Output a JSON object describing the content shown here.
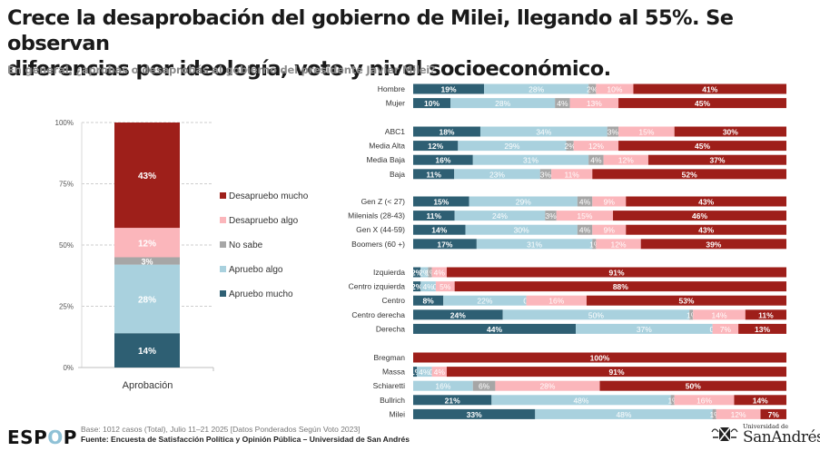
{
  "header": {
    "title_line1": "Crece la desaprobación del gobierno de Milei, llegando al 55%. Se observan",
    "title_line2": "diferencias por ideología, voto y nivel socioeconómico.",
    "subtitle": "En general, ¿aprobás o desaprobás al gobierno del presidente Javier Milei?"
  },
  "colors": {
    "apruebo_mucho": "#2e5f73",
    "apruebo_algo": "#a9d1de",
    "no_sabe": "#a6a6a6",
    "desapruebo_algo": "#fbb6bb",
    "desapruebo_mucho": "#9e1f1a"
  },
  "chart_data": [
    {
      "type": "bar",
      "stacked": true,
      "orientation": "vertical",
      "categories": [
        "Aprobación"
      ],
      "ylim": [
        0,
        100
      ],
      "yticks": [
        "0%",
        "25%",
        "50%",
        "75%",
        "100%"
      ],
      "grid": true,
      "legend_position": "right",
      "series": [
        {
          "name": "Apruebo mucho",
          "key": "apruebo_mucho",
          "values": [
            14
          ],
          "label": "14%"
        },
        {
          "name": "Apruebo algo",
          "key": "apruebo_algo",
          "values": [
            28
          ],
          "label": "28%"
        },
        {
          "name": "No sabe",
          "key": "no_sabe",
          "values": [
            3
          ],
          "label": "3%"
        },
        {
          "name": "Desapruebo algo",
          "key": "desapruebo_algo",
          "values": [
            12
          ],
          "label": "12%"
        },
        {
          "name": "Desapruebo mucho",
          "key": "desapruebo_mucho",
          "values": [
            43
          ],
          "label": "43%"
        }
      ],
      "legend": [
        "Desapruebo mucho",
        "Desapruebo algo",
        "No sabe",
        "Apruebo algo",
        "Apruebo mucho"
      ]
    },
    {
      "type": "bar",
      "stacked": true,
      "orientation": "horizontal",
      "series_names": [
        "Apruebo mucho",
        "Apruebo algo",
        "No sabe",
        "Desapruebo algo",
        "Desapruebo mucho"
      ],
      "series_keys": [
        "apruebo_mucho",
        "apruebo_algo",
        "no_sabe",
        "desapruebo_algo",
        "desapruebo_mucho"
      ],
      "groups": [
        {
          "rows": [
            {
              "label": "Hombre",
              "values": [
                19,
                28,
                2,
                10,
                41
              ]
            },
            {
              "label": "Mujer",
              "values": [
                10,
                28,
                4,
                13,
                45
              ]
            }
          ]
        },
        {
          "rows": [
            {
              "label": "ABC1",
              "values": [
                18,
                34,
                3,
                15,
                30
              ]
            },
            {
              "label": "Media Alta",
              "values": [
                12,
                29,
                2,
                12,
                45
              ]
            },
            {
              "label": "Media Baja",
              "values": [
                16,
                31,
                4,
                12,
                37
              ]
            },
            {
              "label": "Baja",
              "values": [
                11,
                23,
                3,
                11,
                52
              ]
            }
          ]
        },
        {
          "rows": [
            {
              "label": "Gen Z (< 27)",
              "values": [
                15,
                29,
                4,
                9,
                43
              ]
            },
            {
              "label": "Milenials (28-43)",
              "values": [
                11,
                24,
                3,
                15,
                46
              ]
            },
            {
              "label": "Gen X (44-59)",
              "values": [
                14,
                30,
                4,
                9,
                43
              ]
            },
            {
              "label": "Boomers (60 +)",
              "values": [
                17,
                31,
                1,
                12,
                39
              ]
            }
          ]
        },
        {
          "rows": [
            {
              "label": "Izquierda",
              "values": [
                2,
                2,
                1,
                4,
                91
              ]
            },
            {
              "label": "Centro izquierda",
              "values": [
                2,
                4,
                0,
                5,
                88
              ]
            },
            {
              "label": "Centro",
              "values": [
                8,
                22,
                0,
                16,
                53
              ]
            },
            {
              "label": "Centro derecha",
              "values": [
                24,
                50,
                1,
                14,
                11
              ]
            },
            {
              "label": "Derecha",
              "values": [
                44,
                37,
                0,
                7,
                13
              ]
            }
          ]
        },
        {
          "rows": [
            {
              "label": "Bregman",
              "values": [
                0,
                0,
                0,
                0,
                100
              ]
            },
            {
              "label": "Massa",
              "values": [
                1,
                4,
                0,
                4,
                91
              ]
            },
            {
              "label": "Schiaretti",
              "values": [
                0,
                16,
                6,
                28,
                50
              ]
            },
            {
              "label": "Bullrich",
              "values": [
                21,
                48,
                1,
                16,
                14
              ]
            },
            {
              "label": "Milei",
              "values": [
                33,
                48,
                1,
                12,
                7
              ]
            }
          ]
        }
      ]
    }
  ],
  "footer": {
    "logo_text_pre": "ESP",
    "logo_text_o": "O",
    "logo_text_post": "P",
    "base": "Base: 1012 casos (Total), Julio 11–21 2025 [Datos Ponderados Según Voto 2023]",
    "source": "Fuente: Encuesta de Satisfacción Política y Opinión Pública – Universidad de San Andrés",
    "university_small": "Universidad de",
    "university_big": "SanAndrés"
  }
}
